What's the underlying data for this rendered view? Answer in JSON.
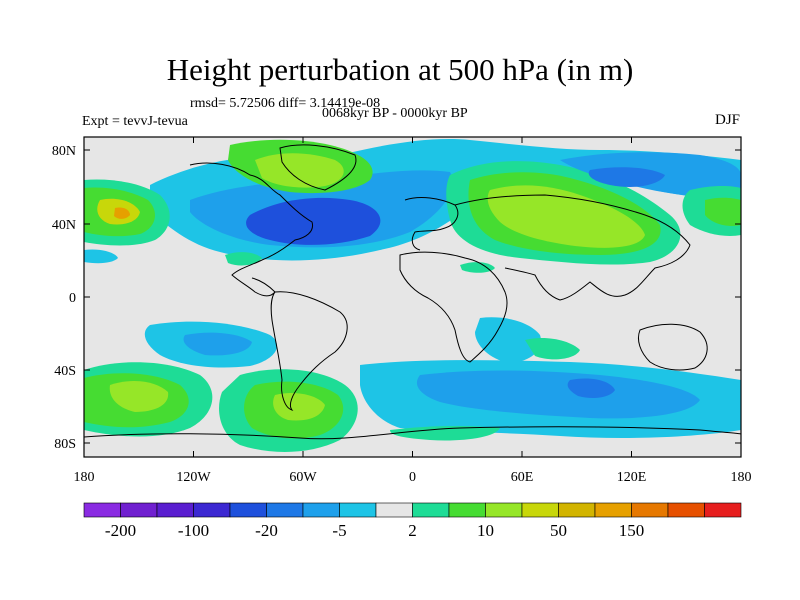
{
  "title": "Height perturbation at 500 hPa (in m)",
  "stats": "rmsd= 5.72506 diff= 3.14419e-08",
  "period": "0068kyr BP - 0000kyr BP",
  "experiment": "Expt = tevvJ-tevua",
  "season": "DJF",
  "map": {
    "latitude_labels": [
      "80N",
      "40N",
      "0",
      "40S",
      "80S"
    ],
    "longitude_labels": [
      "180",
      "120W",
      "60W",
      "0",
      "60E",
      "120E",
      "180"
    ],
    "colors": {
      "land_fill": "#e6e6e6",
      "coastline": "#000000"
    }
  },
  "colorbar": {
    "colors": [
      "#8a2be2",
      "#7020d0",
      "#5a1ed0",
      "#3c28d2",
      "#1e50dc",
      "#1e78e6",
      "#1ea0eb",
      "#1ec4e6",
      "#e6e6e6",
      "#1edc96",
      "#46dc32",
      "#96e628",
      "#c8d70a",
      "#d2b400",
      "#e6a000",
      "#e67800",
      "#e65000",
      "#e61e1e"
    ],
    "labels": [
      "-200",
      "-100",
      "-20",
      "-5",
      "2",
      "10",
      "50",
      "150"
    ]
  }
}
